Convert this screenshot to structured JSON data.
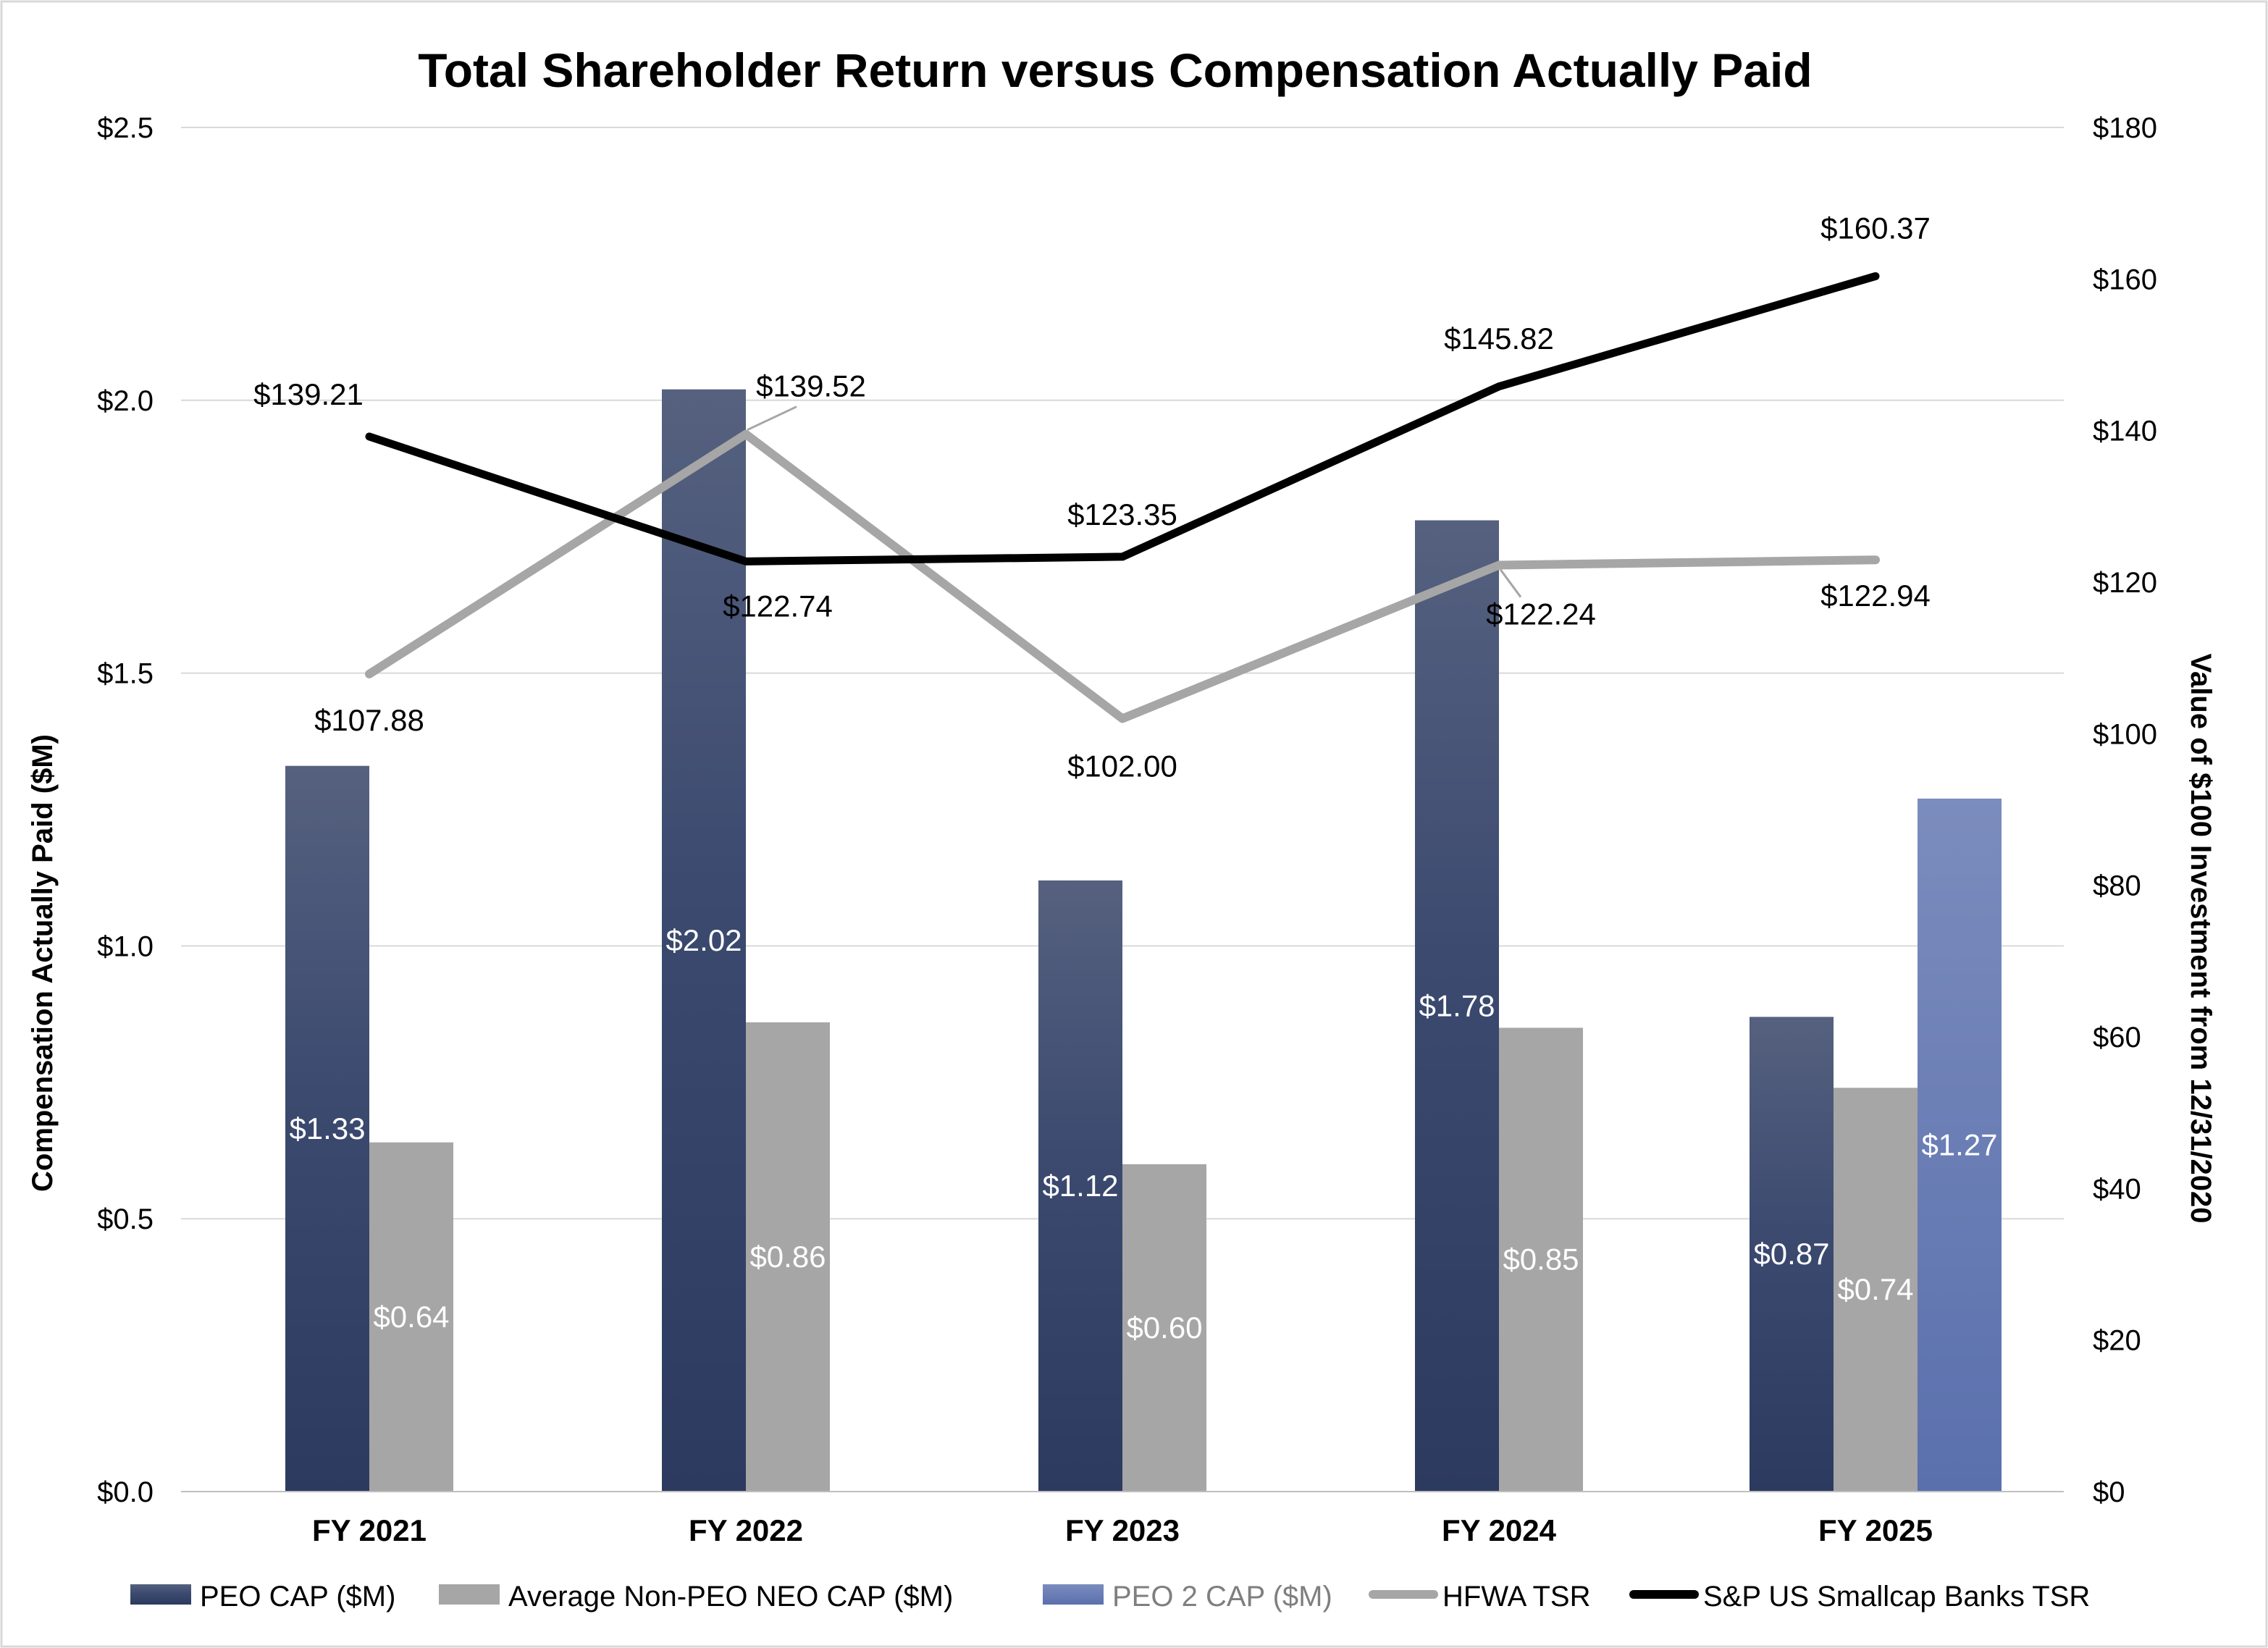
{
  "chart_data": {
    "type": "bar",
    "title": "Total Shareholder Return versus Compensation Actually Paid",
    "categories": [
      "FY 2021",
      "FY 2022",
      "FY 2023",
      "FY 2024",
      "FY 2025"
    ],
    "y_left": {
      "label": "Compensation Actually Paid ($M)",
      "range": [
        0,
        2.5
      ],
      "ticks": [
        "$0.0",
        "$0.5",
        "$1.0",
        "$1.5",
        "$2.0",
        "$2.5"
      ]
    },
    "y_right": {
      "label": "Value of $100 Investment from 12/31/2020",
      "range": [
        0,
        180
      ],
      "ticks": [
        "$0",
        "$20",
        "$40",
        "$60",
        "$80",
        "$100",
        "$120",
        "$140",
        "$160",
        "$180"
      ]
    },
    "grid": true,
    "legend_position": "bottom",
    "bar_series": [
      {
        "name": "PEO CAP ($M)",
        "color": "#34426b",
        "values": [
          1.33,
          2.02,
          1.12,
          1.78,
          0.87
        ],
        "labels": [
          "$1.33",
          "$2.02",
          "$1.12",
          "$1.78",
          "$0.87"
        ]
      },
      {
        "name": "Average Non-PEO NEO CAP ($M)",
        "color": "#a6a6a6",
        "values": [
          0.64,
          0.86,
          0.6,
          0.85,
          0.74
        ],
        "labels": [
          "$0.64",
          "$0.86",
          "$0.60",
          "$0.85",
          "$0.74"
        ]
      },
      {
        "name": "PEO 2 CAP ($M)",
        "color": "#6b80b8",
        "values": [
          null,
          null,
          null,
          null,
          1.27
        ],
        "labels": [
          "",
          "",
          "",
          "",
          "$1.27"
        ]
      }
    ],
    "line_series": [
      {
        "name": "HFWA TSR",
        "color": "#a6a6a6",
        "values": [
          107.88,
          139.52,
          102.0,
          122.24,
          122.94
        ],
        "labels": [
          "$107.88",
          "$139.52",
          "$102.00",
          "$122.24",
          "$122.94"
        ]
      },
      {
        "name": "S&P US Smallcap Banks TSR",
        "color": "#000000",
        "values": [
          139.21,
          122.74,
          123.35,
          145.82,
          160.37
        ],
        "labels": [
          "$139.21",
          "$122.74",
          "$123.35",
          "$145.82",
          "$160.37"
        ]
      }
    ]
  }
}
